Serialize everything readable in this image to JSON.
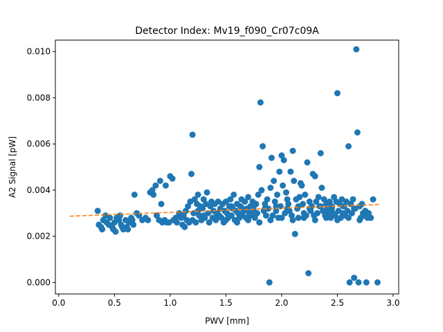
{
  "chart_data": {
    "type": "scatter",
    "title": "Detector Index: Mv19_f090_Cr07c09A",
    "xlabel": "PWV [mm]",
    "ylabel": "A2 Signal [pW]",
    "xlim": [
      -0.03,
      3.05
    ],
    "ylim": [
      -0.0005,
      0.0105
    ],
    "xticks": [
      0.0,
      0.5,
      1.0,
      1.5,
      2.0,
      2.5,
      3.0
    ],
    "xtick_labels": [
      "0.0",
      "0.5",
      "1.0",
      "1.5",
      "2.0",
      "2.5",
      "3.0"
    ],
    "yticks": [
      0.0,
      0.002,
      0.004,
      0.006,
      0.008,
      0.01
    ],
    "ytick_labels": [
      "0.000",
      "0.002",
      "0.004",
      "0.006",
      "0.008",
      "0.010"
    ],
    "grid": false,
    "series": [
      {
        "name": "data",
        "kind": "scatter",
        "color": "#1f77b4",
        "points": [
          [
            0.35,
            0.0031
          ],
          [
            0.36,
            0.0025
          ],
          [
            0.38,
            0.0024
          ],
          [
            0.39,
            0.0023
          ],
          [
            0.4,
            0.0027
          ],
          [
            0.42,
            0.0029
          ],
          [
            0.43,
            0.0026
          ],
          [
            0.45,
            0.0025
          ],
          [
            0.46,
            0.0028
          ],
          [
            0.48,
            0.0024
          ],
          [
            0.49,
            0.0023
          ],
          [
            0.5,
            0.0026
          ],
          [
            0.51,
            0.0022
          ],
          [
            0.52,
            0.0028
          ],
          [
            0.54,
            0.0027
          ],
          [
            0.55,
            0.0029
          ],
          [
            0.56,
            0.0025
          ],
          [
            0.57,
            0.0024
          ],
          [
            0.58,
            0.0023
          ],
          [
            0.6,
            0.0027
          ],
          [
            0.61,
            0.0024
          ],
          [
            0.62,
            0.0023
          ],
          [
            0.63,
            0.0026
          ],
          [
            0.65,
            0.0028
          ],
          [
            0.66,
            0.0027
          ],
          [
            0.67,
            0.0025
          ],
          [
            0.68,
            0.0038
          ],
          [
            0.7,
            0.003
          ],
          [
            0.72,
            0.0029
          ],
          [
            0.75,
            0.0027
          ],
          [
            0.78,
            0.0028
          ],
          [
            0.8,
            0.0027
          ],
          [
            0.82,
            0.0039
          ],
          [
            0.84,
            0.004
          ],
          [
            0.85,
            0.0038
          ],
          [
            0.87,
            0.0042
          ],
          [
            0.88,
            0.0029
          ],
          [
            0.9,
            0.0027
          ],
          [
            0.91,
            0.0044
          ],
          [
            0.92,
            0.0034
          ],
          [
            0.93,
            0.0026
          ],
          [
            0.95,
            0.0027
          ],
          [
            0.96,
            0.0042
          ],
          [
            0.97,
            0.0026
          ],
          [
            0.99,
            0.0026
          ],
          [
            1.0,
            0.0046
          ],
          [
            1.02,
            0.0045
          ],
          [
            1.03,
            0.0027
          ],
          [
            1.05,
            0.0028
          ],
          [
            1.06,
            0.0026
          ],
          [
            1.08,
            0.003
          ],
          [
            1.1,
            0.0028
          ],
          [
            1.11,
            0.0025
          ],
          [
            1.12,
            0.0029
          ],
          [
            1.13,
            0.0024
          ],
          [
            1.14,
            0.0031
          ],
          [
            1.15,
            0.0027
          ],
          [
            1.16,
            0.0033
          ],
          [
            1.17,
            0.0026
          ],
          [
            1.18,
            0.0035
          ],
          [
            1.19,
            0.0047
          ],
          [
            1.2,
            0.0064
          ],
          [
            1.21,
            0.003
          ],
          [
            1.22,
            0.0036
          ],
          [
            1.23,
            0.0026
          ],
          [
            1.24,
            0.0034
          ],
          [
            1.25,
            0.0038
          ],
          [
            1.26,
            0.0029
          ],
          [
            1.27,
            0.0033
          ],
          [
            1.28,
            0.0027
          ],
          [
            1.29,
            0.0032
          ],
          [
            1.3,
            0.0036
          ],
          [
            1.31,
            0.0028
          ],
          [
            1.32,
            0.0034
          ],
          [
            1.33,
            0.0039
          ],
          [
            1.34,
            0.003
          ],
          [
            1.35,
            0.0026
          ],
          [
            1.36,
            0.0033
          ],
          [
            1.37,
            0.0035
          ],
          [
            1.38,
            0.0028
          ],
          [
            1.39,
            0.0031
          ],
          [
            1.4,
            0.0034
          ],
          [
            1.41,
            0.0027
          ],
          [
            1.42,
            0.003
          ],
          [
            1.43,
            0.0035
          ],
          [
            1.44,
            0.0029
          ],
          [
            1.45,
            0.0032
          ],
          [
            1.46,
            0.0028
          ],
          [
            1.47,
            0.0034
          ],
          [
            1.48,
            0.0026
          ],
          [
            1.49,
            0.0031
          ],
          [
            1.5,
            0.0035
          ],
          [
            1.51,
            0.003
          ],
          [
            1.52,
            0.0028
          ],
          [
            1.53,
            0.0033
          ],
          [
            1.54,
            0.0036
          ],
          [
            1.55,
            0.0029
          ],
          [
            1.56,
            0.0032
          ],
          [
            1.57,
            0.0038
          ],
          [
            1.58,
            0.0027
          ],
          [
            1.59,
            0.0031
          ],
          [
            1.6,
            0.0034
          ],
          [
            1.61,
            0.003
          ],
          [
            1.62,
            0.0028
          ],
          [
            1.63,
            0.0033
          ],
          [
            1.64,
            0.0036
          ],
          [
            1.65,
            0.0029
          ],
          [
            1.66,
            0.0031
          ],
          [
            1.67,
            0.0035
          ],
          [
            1.68,
            0.0028
          ],
          [
            1.69,
            0.0032
          ],
          [
            1.7,
            0.0037
          ],
          [
            1.71,
            0.003
          ],
          [
            1.72,
            0.0033
          ],
          [
            1.73,
            0.0029
          ],
          [
            1.74,
            0.0035
          ],
          [
            1.75,
            0.0031
          ],
          [
            1.76,
            0.0028
          ],
          [
            1.77,
            0.0034
          ],
          [
            1.78,
            0.003
          ],
          [
            1.79,
            0.0038
          ],
          [
            1.8,
            0.005
          ],
          [
            1.81,
            0.0078
          ],
          [
            1.82,
            0.004
          ],
          [
            1.83,
            0.0059
          ],
          [
            1.84,
            0.0031
          ],
          [
            1.85,
            0.0034
          ],
          [
            1.86,
            0.0029
          ],
          [
            1.87,
            0.0036
          ],
          [
            1.88,
            0.0032
          ],
          [
            1.89,
            0.0,
            ""
          ],
          [
            1.9,
            0.0041
          ],
          [
            1.91,
            0.0054
          ],
          [
            1.92,
            0.0029
          ],
          [
            1.93,
            0.0044
          ],
          [
            1.94,
            0.0035
          ],
          [
            1.95,
            0.0031
          ],
          [
            1.96,
            0.0038
          ],
          [
            1.97,
            0.0028
          ],
          [
            1.98,
            0.0048
          ],
          [
            1.99,
            0.0033
          ],
          [
            2.0,
            0.0055
          ],
          [
            2.01,
            0.0042
          ],
          [
            2.02,
            0.0053
          ],
          [
            2.03,
            0.003
          ],
          [
            2.04,
            0.0039
          ],
          [
            2.05,
            0.0036
          ],
          [
            2.06,
            0.0034
          ],
          [
            2.07,
            0.0031
          ],
          [
            2.08,
            0.0048
          ],
          [
            2.09,
            0.0029
          ],
          [
            2.1,
            0.0057
          ],
          [
            2.11,
            0.0044
          ],
          [
            2.12,
            0.0021
          ],
          [
            2.13,
            0.0036
          ],
          [
            2.14,
            0.0032
          ],
          [
            2.15,
            0.0028
          ],
          [
            2.16,
            0.0037
          ],
          [
            2.17,
            0.0043
          ],
          [
            2.18,
            0.0042
          ],
          [
            2.19,
            0.0034
          ],
          [
            2.2,
            0.003
          ],
          [
            2.21,
            0.0038
          ],
          [
            2.22,
            0.0029
          ],
          [
            2.23,
            0.0052
          ],
          [
            2.24,
            0.0004
          ],
          [
            2.25,
            0.0035
          ],
          [
            2.26,
            0.0031
          ],
          [
            2.27,
            0.0033
          ],
          [
            2.28,
            0.0047
          ],
          [
            2.29,
            0.0029
          ],
          [
            2.3,
            0.0046
          ],
          [
            2.31,
            0.0035
          ],
          [
            2.32,
            0.003
          ],
          [
            2.33,
            0.0037
          ],
          [
            2.34,
            0.0033
          ],
          [
            2.35,
            0.0056
          ],
          [
            2.36,
            0.0041
          ],
          [
            2.37,
            0.0031
          ],
          [
            2.38,
            0.0036
          ],
          [
            2.39,
            0.0029
          ],
          [
            2.4,
            0.0034
          ],
          [
            2.41,
            0.0032
          ],
          [
            2.42,
            0.003
          ],
          [
            2.43,
            0.0035
          ],
          [
            2.44,
            0.0028
          ],
          [
            2.45,
            0.0033
          ],
          [
            2.46,
            0.003
          ],
          [
            2.47,
            0.0037
          ],
          [
            2.48,
            0.0029
          ],
          [
            2.49,
            0.0035
          ],
          [
            2.5,
            0.0082
          ],
          [
            2.51,
            0.0031
          ],
          [
            2.52,
            0.0034
          ],
          [
            2.53,
            0.0028
          ],
          [
            2.54,
            0.0036
          ],
          [
            2.55,
            0.003
          ],
          [
            2.56,
            0.0033
          ],
          [
            2.57,
            0.0029
          ],
          [
            2.58,
            0.0035
          ],
          [
            2.59,
            0.0031
          ],
          [
            2.6,
            0.0059
          ],
          [
            2.61,
            0.0,
            ""
          ],
          [
            2.62,
            0.0034
          ],
          [
            2.63,
            0.003
          ],
          [
            2.64,
            0.0036
          ],
          [
            2.65,
            0.0002
          ],
          [
            2.66,
            0.0032
          ],
          [
            2.67,
            0.0101
          ],
          [
            2.68,
            0.0065
          ],
          [
            2.69,
            0.0,
            ""
          ],
          [
            2.7,
            0.0033
          ],
          [
            2.71,
            0.0028
          ],
          [
            2.72,
            0.0034
          ],
          [
            2.73,
            0.003
          ],
          [
            2.74,
            0.0029
          ],
          [
            2.75,
            0.0031
          ],
          [
            2.76,
            0.0,
            ""
          ],
          [
            2.77,
            0.0028
          ],
          [
            2.78,
            0.003
          ],
          [
            2.8,
            0.0028
          ],
          [
            2.82,
            0.0036
          ],
          [
            2.86,
            0.0,
            ""
          ],
          [
            1.5,
            0.0027
          ],
          [
            1.6,
            0.0026
          ],
          [
            1.7,
            0.0027
          ],
          [
            1.8,
            0.0026
          ],
          [
            1.9,
            0.0027
          ],
          [
            2.0,
            0.0028
          ],
          [
            2.1,
            0.0027
          ],
          [
            2.2,
            0.0028
          ],
          [
            2.3,
            0.0027
          ],
          [
            2.4,
            0.0028
          ],
          [
            2.5,
            0.0027
          ],
          [
            2.6,
            0.0028
          ],
          [
            2.7,
            0.0027
          ],
          [
            1.55,
            0.0033
          ],
          [
            1.65,
            0.0032
          ],
          [
            1.75,
            0.0033
          ],
          [
            1.85,
            0.0032
          ],
          [
            1.95,
            0.0033
          ],
          [
            2.05,
            0.0032
          ],
          [
            2.15,
            0.0033
          ],
          [
            2.25,
            0.0032
          ],
          [
            2.35,
            0.0033
          ],
          [
            2.45,
            0.0032
          ],
          [
            2.55,
            0.0033
          ],
          [
            2.65,
            0.0032
          ],
          [
            2.75,
            0.0031
          ],
          [
            1.3,
            0.0029
          ],
          [
            1.4,
            0.0028
          ],
          [
            1.2,
            0.0027
          ],
          [
            1.25,
            0.0031
          ]
        ]
      },
      {
        "name": "fit",
        "kind": "line",
        "style": "dashed",
        "color": "#ff7f0e",
        "points": [
          [
            0.1,
            0.00287
          ],
          [
            2.88,
            0.00338
          ]
        ]
      }
    ]
  }
}
